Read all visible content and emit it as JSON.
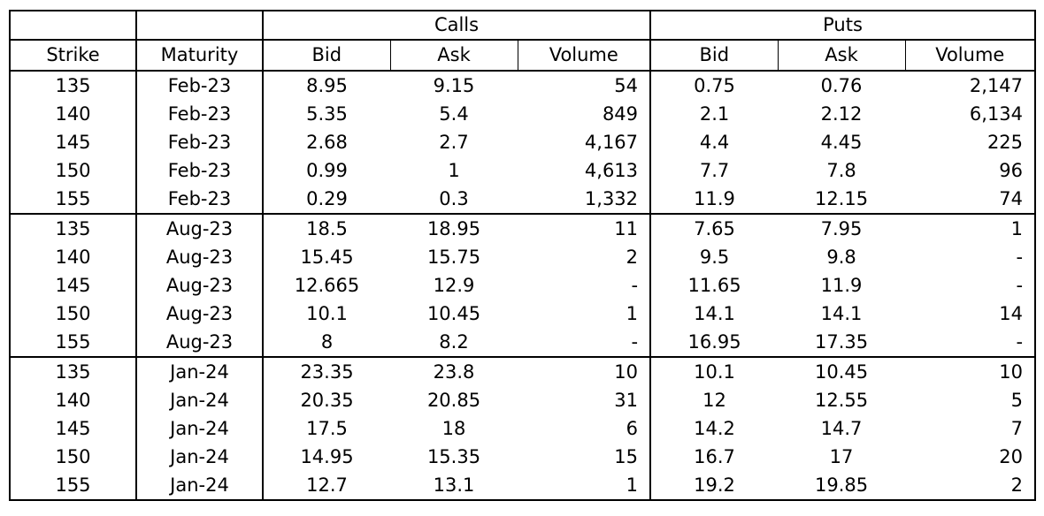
{
  "header": {
    "group_calls": "Calls",
    "group_puts": "Puts",
    "columns": [
      "Strike",
      "Maturity",
      "Bid",
      "Ask",
      "Volume",
      "Bid",
      "Ask",
      "Volume"
    ]
  },
  "rows": [
    [
      "135",
      "Feb-23",
      "8.95",
      "9.15",
      "54",
      "0.75",
      "0.76",
      "2,147"
    ],
    [
      "140",
      "Feb-23",
      "5.35",
      "5.4",
      "849",
      "2.1",
      "2.12",
      "6,134"
    ],
    [
      "145",
      "Feb-23",
      "2.68",
      "2.7",
      "4,167",
      "4.4",
      "4.45",
      "225"
    ],
    [
      "150",
      "Feb-23",
      "0.99",
      "1",
      "4,613",
      "7.7",
      "7.8",
      "96"
    ],
    [
      "155",
      "Feb-23",
      "0.29",
      "0.3",
      "1,332",
      "11.9",
      "12.15",
      "74"
    ],
    [
      "135",
      "Aug-23",
      "18.5",
      "18.95",
      "11",
      "7.65",
      "7.95",
      "1"
    ],
    [
      "140",
      "Aug-23",
      "15.45",
      "15.75",
      "2",
      "9.5",
      "9.8",
      "-"
    ],
    [
      "145",
      "Aug-23",
      "12.665",
      "12.9",
      "-",
      "11.65",
      "11.9",
      "-"
    ],
    [
      "150",
      "Aug-23",
      "10.1",
      "10.45",
      "1",
      "14.1",
      "14.1",
      "14"
    ],
    [
      "155",
      "Aug-23",
      "8",
      "8.2",
      "-",
      "16.95",
      "17.35",
      "-"
    ],
    [
      "135",
      "Jan-24",
      "23.35",
      "23.8",
      "10",
      "10.1",
      "10.45",
      "10"
    ],
    [
      "140",
      "Jan-24",
      "20.35",
      "20.85",
      "31",
      "12",
      "12.55",
      "5"
    ],
    [
      "145",
      "Jan-24",
      "17.5",
      "18",
      "6",
      "14.2",
      "14.7",
      "7"
    ],
    [
      "150",
      "Jan-24",
      "14.95",
      "15.35",
      "15",
      "16.7",
      "17",
      "20"
    ],
    [
      "155",
      "Jan-24",
      "12.7",
      "13.1",
      "1",
      "19.2",
      "19.85",
      "2"
    ]
  ]
}
